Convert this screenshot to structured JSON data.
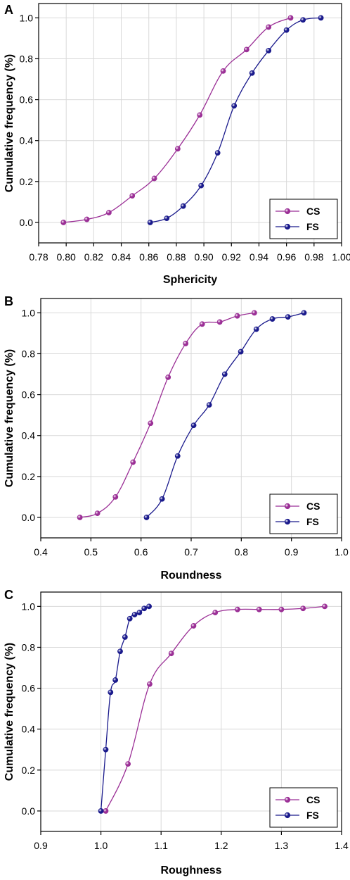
{
  "figure": {
    "panels": [
      {
        "letter": "A",
        "xlabel": "Sphericity",
        "ylabel": "Cumulative frequency (%)",
        "xticks": [
          "0.78",
          "0.80",
          "0.82",
          "0.84",
          "0.86",
          "0.88",
          "0.90",
          "0.92",
          "0.94",
          "0.96",
          "0.98",
          "1.00"
        ],
        "yticks": [
          "0.0",
          "0.2",
          "0.4",
          "0.6",
          "0.8",
          "1.0"
        ],
        "legend": [
          "CS",
          "FS"
        ]
      },
      {
        "letter": "B",
        "xlabel": "Roundness",
        "ylabel": "Cumulative frequency (%)",
        "xticks": [
          "0.4",
          "0.5",
          "0.6",
          "0.7",
          "0.8",
          "0.9",
          "1.0"
        ],
        "yticks": [
          "0.0",
          "0.2",
          "0.4",
          "0.6",
          "0.8",
          "1.0"
        ],
        "legend": [
          "CS",
          "FS"
        ]
      },
      {
        "letter": "C",
        "xlabel": "Roughness",
        "ylabel": "Cumulative frequency (%)",
        "xticks": [
          "0.9",
          "1.0",
          "1.1",
          "1.2",
          "1.3",
          "1.4"
        ],
        "yticks": [
          "0.0",
          "0.2",
          "0.4",
          "0.6",
          "0.8",
          "1.0"
        ],
        "legend": [
          "CS",
          "FS"
        ]
      }
    ]
  },
  "colors": {
    "CS": "#9b2f96",
    "FS": "#1a1a8c",
    "grid": "#d9d9d9",
    "axis": "#000000"
  },
  "chart_data": [
    {
      "type": "line",
      "xlabel": "Sphericity",
      "ylabel": "Cumulative frequency (%)",
      "xlim": [
        0.78,
        1.0
      ],
      "ylim": [
        -0.1,
        1.07
      ],
      "grid": true,
      "legend_position": "bottom-right",
      "series": [
        {
          "name": "CS",
          "x": [
            0.798,
            0.815,
            0.831,
            0.848,
            0.864,
            0.881,
            0.897,
            0.914,
            0.931,
            0.947,
            0.963
          ],
          "y": [
            0.0,
            0.015,
            0.048,
            0.13,
            0.215,
            0.36,
            0.525,
            0.74,
            0.845,
            0.955,
            1.0
          ]
        },
        {
          "name": "FS",
          "x": [
            0.861,
            0.873,
            0.885,
            0.898,
            0.91,
            0.922,
            0.935,
            0.947,
            0.96,
            0.972,
            0.985
          ],
          "y": [
            0.0,
            0.02,
            0.08,
            0.18,
            0.34,
            0.57,
            0.73,
            0.84,
            0.94,
            0.99,
            1.0
          ]
        }
      ]
    },
    {
      "type": "line",
      "xlabel": "Roundness",
      "ylabel": "Cumulative frequency (%)",
      "xlim": [
        0.4,
        1.0
      ],
      "ylim": [
        -0.1,
        1.07
      ],
      "grid": true,
      "legend_position": "bottom-right",
      "series": [
        {
          "name": "CS",
          "x": [
            0.478,
            0.513,
            0.549,
            0.584,
            0.619,
            0.654,
            0.689,
            0.722,
            0.757,
            0.792,
            0.826
          ],
          "y": [
            0.0,
            0.02,
            0.1,
            0.27,
            0.46,
            0.685,
            0.85,
            0.945,
            0.955,
            0.985,
            1.0
          ]
        },
        {
          "name": "FS",
          "x": [
            0.611,
            0.642,
            0.673,
            0.705,
            0.736,
            0.767,
            0.799,
            0.83,
            0.862,
            0.893,
            0.925
          ],
          "y": [
            0.0,
            0.09,
            0.3,
            0.45,
            0.55,
            0.7,
            0.81,
            0.92,
            0.97,
            0.98,
            1.0
          ]
        }
      ]
    },
    {
      "type": "line",
      "xlabel": "Roughness",
      "ylabel": "Cumulative frequency (%)",
      "xlim": [
        0.9,
        1.4
      ],
      "ylim": [
        -0.1,
        1.07
      ],
      "grid": true,
      "legend_position": "bottom-right",
      "series": [
        {
          "name": "CS",
          "x": [
            1.008,
            1.045,
            1.081,
            1.117,
            1.154,
            1.19,
            1.227,
            1.263,
            1.3,
            1.336,
            1.372
          ],
          "y": [
            0.0,
            0.23,
            0.62,
            0.77,
            0.905,
            0.97,
            0.985,
            0.985,
            0.985,
            0.99,
            1.0
          ]
        },
        {
          "name": "FS",
          "x": [
            1.0,
            1.008,
            1.016,
            1.024,
            1.032,
            1.04,
            1.048,
            1.056,
            1.064,
            1.072,
            1.08
          ],
          "y": [
            0.0,
            0.3,
            0.58,
            0.64,
            0.78,
            0.85,
            0.94,
            0.96,
            0.97,
            0.99,
            1.0
          ]
        }
      ]
    }
  ]
}
